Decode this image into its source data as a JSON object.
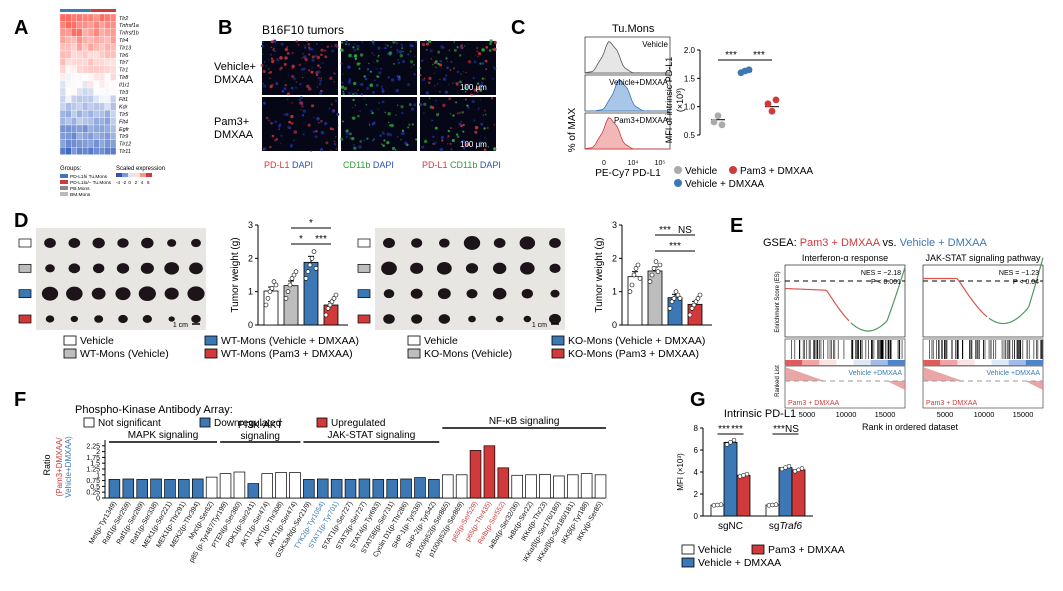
{
  "panel_letters": [
    "A",
    "B",
    "C",
    "D",
    "E",
    "F",
    "G"
  ],
  "colors": {
    "vehicle": "#ffffff",
    "vehicle_dmxaa": "#3b78b5",
    "pam3_dmxaa": "#d13a3a",
    "gray": "#bdbdbd",
    "black": "#111111",
    "gsea_green": "#4f9a63",
    "gsea_red": "#d9534f"
  },
  "panelA": {
    "genes": [
      "Tlr2",
      "Tnfrsf1a",
      "Tnfrsf1b",
      "Tlr4",
      "Tlr13",
      "Tlr6",
      "Tlr7",
      "Tlr1",
      "Tlr8",
      "Il1r1",
      "Tlr3",
      "Flt1",
      "Kdr",
      "Tlr5",
      "Flt4",
      "Egfr",
      "Tlr9",
      "Tlr12",
      "Tlr11"
    ],
    "groups_title": "Groups:",
    "scale_title": "Scaled expression",
    "scale_ticks": [
      "-4",
      "-2",
      "0",
      "2",
      "4",
      "6"
    ],
    "group_labels": [
      "PD-L1hi Tu.Mons",
      "PD-L1lo/– Tu.Mons",
      "PB.Mons",
      "BM.Mons"
    ]
  },
  "panelB": {
    "title": "B16F10 tumors",
    "rows": [
      "Vehicle+\nDMXAA",
      "Pam3+\nDMXAA"
    ],
    "row1": [
      "Vehicle+",
      "DMXAA"
    ],
    "row2": [
      "Pam3+",
      "DMXAA"
    ],
    "scale": "100 μm",
    "col_labels": [
      [
        {
          "t": "PD-L1",
          "c": "#d13a3a"
        },
        {
          "t": " DAPI",
          "c": "#2b4fb5"
        }
      ],
      [
        {
          "t": "CD11b",
          "c": "#2f9a3a"
        },
        {
          "t": " DAPI",
          "c": "#2b4fb5"
        }
      ],
      [
        {
          "t": "PD-L1",
          "c": "#d13a3a"
        },
        {
          "t": " CD11b",
          "c": "#2f9a3a"
        },
        {
          "t": " DAPI",
          "c": "#2b4fb5"
        }
      ]
    ]
  },
  "panelC": {
    "title": "Tu.Mons",
    "hist_labels": [
      "Vehicle",
      "Vehicle+DMXAA",
      "Pam3+DMXAA"
    ],
    "hist_ylabel": "% of MAX",
    "hist_xlabel": "PE-Cy7 PD-L1",
    "hist_ticks": [
      "0",
      "10⁴",
      "10⁵"
    ],
    "ylabel_l1": "MFI of intrinsic PD-L1",
    "ylabel_l2": "(×10³)",
    "yticks": [
      "0.5",
      "1.0",
      "1.5",
      "2.0"
    ],
    "sig": [
      "***",
      "***"
    ],
    "legend": [
      "Vehicle",
      "Pam3 + DMXAA",
      "Vehicle + DMXAA"
    ]
  },
  "chart_data": [
    {
      "type": "scatter",
      "panel": "C",
      "ylabel": "MFI of intrinsic PD-L1 (×10³)",
      "ylim": [
        0.5,
        2.0
      ],
      "categories": [
        "Vehicle",
        "Vehicle + DMXAA",
        "Pam3 + DMXAA"
      ],
      "series": [
        {
          "name": "Vehicle",
          "mean": 0.77,
          "points": [
            0.73,
            0.84,
            0.68
          ]
        },
        {
          "name": "Vehicle + DMXAA",
          "mean": 1.62,
          "points": [
            1.6,
            1.63,
            1.65
          ]
        },
        {
          "name": "Pam3 + DMXAA",
          "mean": 1.0,
          "points": [
            1.05,
            0.92,
            1.12
          ]
        }
      ]
    },
    {
      "type": "bar",
      "panel": "D-WT",
      "ylabel": "Tumor weight (g)",
      "ylim": [
        0,
        3
      ],
      "yticks": [
        "0",
        "1",
        "2",
        "3"
      ],
      "categories": [
        "Vehicle",
        "WT-Mons (Vehicle)",
        "WT-Mons (Vehicle + DMXAA)",
        "WT-Mons (Pam3 + DMXAA)"
      ],
      "values": [
        1.02,
        1.18,
        1.88,
        0.6
      ],
      "errors": [
        0.12,
        0.14,
        0.18,
        0.1
      ],
      "points": [
        [
          0.6,
          0.8,
          1.0,
          1.1,
          1.3,
          1.2
        ],
        [
          0.8,
          1.0,
          1.2,
          1.4,
          1.5,
          1.6
        ],
        [
          1.4,
          1.6,
          1.8,
          2.0,
          2.2,
          1.7
        ],
        [
          0.3,
          0.5,
          0.6,
          0.7,
          0.8,
          0.9
        ]
      ],
      "sig": [
        "*",
        "*",
        "***"
      ]
    },
    {
      "type": "bar",
      "panel": "D-KO",
      "ylabel": "Tumor weight (g)",
      "ylim": [
        0,
        3
      ],
      "yticks": [
        "0",
        "1",
        "2",
        "3"
      ],
      "categories": [
        "Vehicle",
        "KO-Mons (Vehicle)",
        "KO-Mons (Vehicle + DMXAA)",
        "KO-Mons (Pam3 + DMXAA)"
      ],
      "values": [
        1.45,
        1.62,
        0.82,
        0.62
      ],
      "errors": [
        0.15,
        0.12,
        0.1,
        0.09
      ],
      "points": [
        [
          1.0,
          1.2,
          1.5,
          1.7,
          1.8,
          1.4
        ],
        [
          1.3,
          1.5,
          1.7,
          1.9,
          1.6,
          1.8
        ],
        [
          0.5,
          0.7,
          0.8,
          1.0,
          0.9,
          0.8
        ],
        [
          0.3,
          0.5,
          0.6,
          0.7,
          0.8,
          0.9
        ]
      ],
      "sig": [
        "***",
        "NS",
        "***"
      ]
    },
    {
      "type": "bar",
      "panel": "F",
      "ylabel": "Ratio (Pam3+DMXAA/Vehicle+DMXAA)",
      "ylim": [
        0,
        2.5
      ],
      "yticks": [
        "0",
        "0.25",
        "0.5",
        "0.75",
        "1",
        "1.25",
        "1.5",
        "1.75",
        "2",
        "2.25"
      ],
      "categories": [
        "Met(p-Tyr1349)",
        "Raf1(p-Ser259)",
        "Raf1(p-Ser289)",
        "Raf1(p-Ser338)",
        "MEK1(p-Ser221)",
        "MEK1(p-Thr291)",
        "MEK2(p-Thr394)",
        "Myc(p-Ser62)",
        "p85 (p-Tyr467/Tyr199)",
        "PTEN(p-Ser380)",
        "PDK1(p-Ser241)",
        "AKT1(p-Ser474)",
        "AKT1(p-Thr308)",
        "AKT1(p-Ser474)",
        "GSK3a/b(p-Ser21/9)",
        "TYK2(p-Tyr1054)",
        "STAT1(p-Tyr701)",
        "STAT1(p-Ser727)",
        "STAT3(p-Ser727)",
        "STAT4(p-Tyr693)",
        "STAT5B(p-Ser731)",
        "Cyclin D1(p-Thr286)",
        "SHP-1(p-Tyr536)",
        "SHP-2(p-Tyr542)",
        "p100/p52(p-Ser865)",
        "p100/p52(p-Ser869)",
        "p65(p-Ser529)",
        "p65(p-Thr435)",
        "Relb(p-Ser552)",
        "IκBα(p-Ser32/36)",
        "IκBε(p-Ser22)",
        "IKKα(p-Thr23)",
        "IKKα/β(p-Ser176/180)",
        "IKKα/β(p-Ser180/181)",
        "IKKβ(p-Tyr188)",
        "IKKγ(p-Ser85)"
      ],
      "values": [
        0.8,
        0.82,
        0.8,
        0.82,
        0.8,
        0.8,
        0.82,
        0.9,
        1.05,
        1.12,
        0.62,
        1.05,
        1.1,
        1.1,
        0.8,
        0.82,
        0.8,
        0.8,
        0.82,
        0.8,
        0.8,
        0.82,
        0.88,
        0.8,
        1.0,
        1.0,
        2.05,
        2.25,
        1.3,
        0.98,
        1.0,
        1.02,
        0.95,
        1.0,
        1.05,
        1.0
      ],
      "status": [
        "d",
        "d",
        "d",
        "d",
        "d",
        "d",
        "d",
        "n",
        "n",
        "n",
        "d",
        "n",
        "n",
        "n",
        "d",
        "d",
        "d",
        "d",
        "d",
        "d",
        "d",
        "d",
        "d",
        "d",
        "n",
        "n",
        "u",
        "u",
        "u",
        "n",
        "n",
        "n",
        "n",
        "n",
        "n",
        "n"
      ],
      "groups": [
        "MAPK signaling",
        "PI3K-AKT signaling",
        "JAK-STAT signaling",
        "NF-κB signaling"
      ]
    },
    {
      "type": "bar",
      "panel": "G",
      "title": "Intrinsic PD-L1",
      "ylabel": "MFI (×10³)",
      "ylim": [
        0,
        8
      ],
      "yticks": [
        "0",
        "2",
        "4",
        "6",
        "8"
      ],
      "categories": [
        "sgNC",
        "sgTraf6"
      ],
      "series": [
        {
          "name": "Vehicle",
          "values": [
            1.0,
            1.0
          ]
        },
        {
          "name": "Vehicle + DMXAA",
          "values": [
            6.7,
            4.4
          ]
        },
        {
          "name": "Pam3 + DMXAA",
          "values": [
            3.7,
            4.2
          ]
        }
      ],
      "sig": [
        [
          "***",
          "***"
        ],
        [
          "***",
          "NS"
        ]
      ]
    }
  ],
  "panelD": {
    "scale": "1 cm",
    "wt_legend": [
      "Vehicle",
      "WT-Mons (Vehicle)",
      "WT-Mons (Vehicle + DMXAA)",
      "WT-Mons (Pam3 + DMXAA)"
    ],
    "ko_legend": [
      "Vehicle",
      "KO-Mons (Vehicle)",
      "KO-Mons (Vehicle + DMXAA)",
      "KO-Mons (Pam3 + DMXAA)"
    ]
  },
  "panelE": {
    "title_prefix": "GSEA: ",
    "title_a": "Pam3 + DMXAA",
    "title_vs": " vs. ",
    "title_b": "Vehicle + DMXAA",
    "plots": [
      {
        "title": "Interferon-α response",
        "nes": "NES = −2.18",
        "p": "P < 0.001"
      },
      {
        "title": "JAK-STAT signaling pathway",
        "nes": "NES = −1.23",
        "p": "P < 0.04"
      }
    ],
    "ylabel_top": "Enrichment Score (ES)",
    "ylabel_bottom": "Ranked List",
    "xlabel": "Rank in ordered dataset",
    "xticks": [
      "5000",
      "10000",
      "15000"
    ],
    "pos_label": "Pam3 + DMXAA",
    "neg_label": "Vehicle +DMXAA"
  },
  "panelF": {
    "title": "Phospho-Kinase Antibody Array:",
    "legend": [
      "Not significant",
      "Downregulated",
      "Upregulated"
    ],
    "ylabel_main": "Ratio",
    "ylabel_a": "Pam3+DMXAA",
    "ylabel_b": "Vehicle+DMXAA",
    "label_colors": {
      "TYK2(p-Tyr1054)": "#3b78b5",
      "STAT1(p-Tyr701)": "#3b78b5",
      "p65(p-Ser529)": "#d13a3a",
      "p65(p-Thr435)": "#d13a3a",
      "Relb(p-Ser552)": "#d13a3a"
    }
  },
  "panelG": {
    "legend": [
      "Vehicle",
      "Pam3 + DMXAA",
      "Vehicle + DMXAA"
    ]
  }
}
